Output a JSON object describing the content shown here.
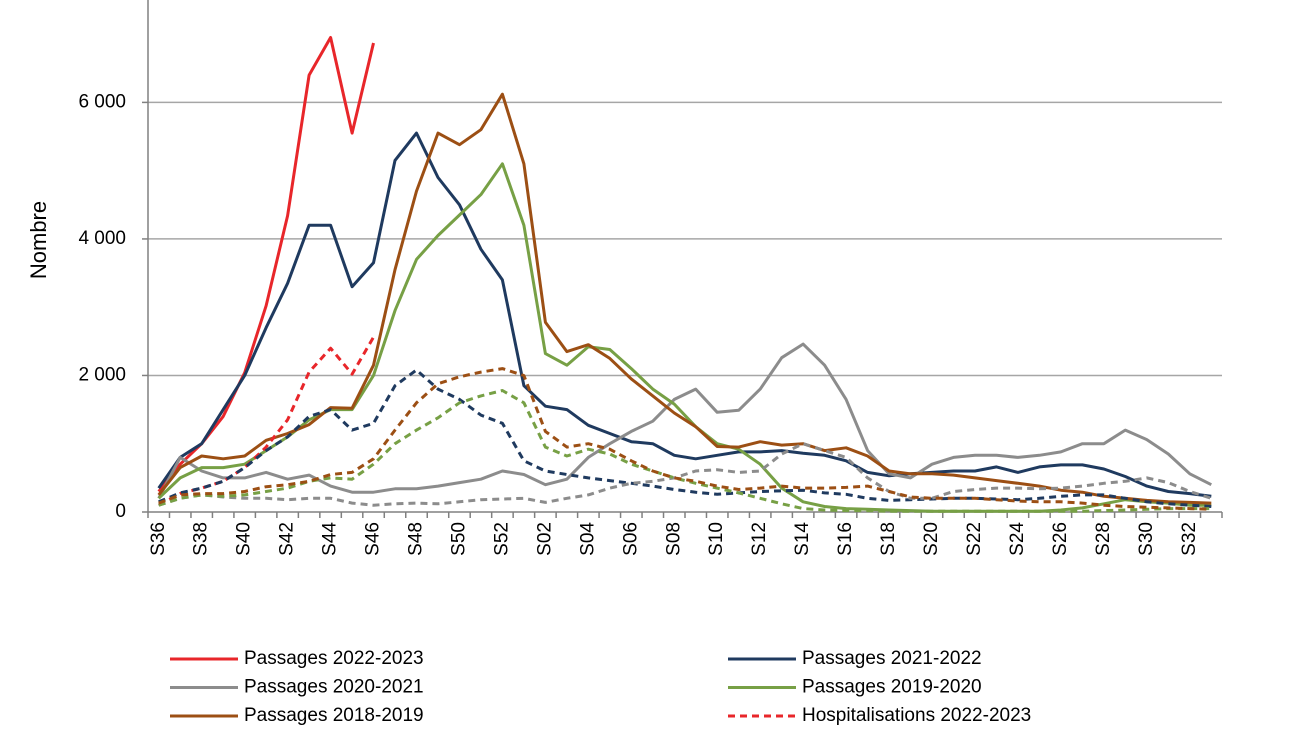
{
  "chart_data": {
    "type": "line",
    "y_label": "Nombre",
    "categories": [
      "S36",
      null,
      "S38",
      null,
      "S40",
      null,
      "S42",
      null,
      "S44",
      null,
      "S46",
      null,
      "S48",
      null,
      "S50",
      null,
      "S52",
      null,
      "S02",
      null,
      "S04",
      null,
      "S06",
      null,
      "S08",
      null,
      "S10",
      null,
      "S12",
      null,
      "S14",
      null,
      "S16",
      null,
      "S18",
      null,
      "S20",
      null,
      "S22",
      null,
      "S24",
      null,
      "S26",
      null,
      "S28",
      null,
      "S30",
      null,
      "S32",
      null
    ],
    "ylim": [
      0,
      7500
    ],
    "yticks": [
      0,
      {
        "value": 2000,
        "label": "2 000"
      },
      {
        "value": 4000,
        "label": "4 000"
      },
      {
        "value": 6000,
        "label": "6 000"
      }
    ],
    "grid": true,
    "series": [
      {
        "name": "Passages 2022-2023",
        "color": "#e8262a",
        "dash": false,
        "values": [
          300,
          700,
          1000,
          1400,
          2040,
          3020,
          4340,
          6400,
          6950,
          5550,
          6870,
          null,
          null,
          null,
          null,
          null,
          null,
          null,
          null,
          null,
          null,
          null,
          null,
          null,
          null,
          null,
          null,
          null,
          null,
          null,
          null,
          null,
          null,
          null,
          null,
          null,
          null,
          null,
          null,
          null,
          null,
          null,
          null,
          null,
          null,
          null,
          null,
          null,
          null,
          null
        ]
      },
      {
        "name": "Passages 2021-2022",
        "color": "#1f3a5f",
        "dash": false,
        "values": [
          350,
          800,
          1000,
          1500,
          2000,
          2700,
          3350,
          4200,
          4200,
          3300,
          3650,
          5150,
          5550,
          4900,
          4500,
          3850,
          3400,
          1850,
          1550,
          1500,
          1270,
          1150,
          1030,
          1000,
          830,
          780,
          830,
          880,
          880,
          900,
          860,
          830,
          750,
          580,
          530,
          560,
          580,
          600,
          600,
          660,
          580,
          660,
          690,
          690,
          630,
          520,
          380,
          300,
          270,
          230
        ]
      },
      {
        "name": "Passages 2020-2021",
        "color": "#8c8c8c",
        "dash": false,
        "values": [
          200,
          800,
          600,
          500,
          500,
          580,
          480,
          540,
          380,
          290,
          290,
          340,
          340,
          380,
          430,
          480,
          600,
          550,
          400,
          480,
          800,
          1000,
          1180,
          1330,
          1650,
          1800,
          1460,
          1490,
          1800,
          2260,
          2460,
          2150,
          1650,
          900,
          560,
          500,
          700,
          800,
          830,
          830,
          800,
          830,
          880,
          1000,
          1000,
          1200,
          1060,
          850,
          560,
          400
        ]
      },
      {
        "name": "Passages 2019-2020",
        "color": "#77a045",
        "dash": false,
        "values": [
          200,
          500,
          650,
          650,
          700,
          900,
          1100,
          1350,
          1500,
          1500,
          2000,
          2950,
          3700,
          4050,
          4350,
          4650,
          5100,
          4200,
          2320,
          2150,
          2420,
          2380,
          2100,
          1800,
          1580,
          1250,
          1000,
          920,
          700,
          350,
          150,
          80,
          50,
          40,
          30,
          20,
          10,
          10,
          10,
          10,
          10,
          10,
          30,
          60,
          120,
          180,
          150,
          130,
          100,
          100
        ]
      },
      {
        "name": "Passages 2018-2019",
        "color": "#9c4f14",
        "dash": false,
        "values": [
          250,
          650,
          820,
          780,
          820,
          1050,
          1150,
          1280,
          1530,
          1520,
          2150,
          3550,
          4700,
          5550,
          5380,
          5600,
          6120,
          5100,
          2780,
          2350,
          2450,
          2250,
          1950,
          1700,
          1450,
          1250,
          960,
          950,
          1030,
          980,
          1000,
          900,
          940,
          820,
          600,
          560,
          560,
          540,
          500,
          460,
          420,
          380,
          320,
          290,
          230,
          200,
          170,
          150,
          140,
          130
        ]
      },
      {
        "name": "Hospitalisations 2022-2023",
        "color": "#e8262a",
        "dash": true,
        "values": [
          100,
          270,
          350,
          450,
          650,
          950,
          1350,
          2050,
          2400,
          2020,
          2560,
          null,
          null,
          null,
          null,
          null,
          null,
          null,
          null,
          null,
          null,
          null,
          null,
          null,
          null,
          null,
          null,
          null,
          null,
          null,
          null,
          null,
          null,
          null,
          null,
          null,
          null,
          null,
          null,
          null,
          null,
          null,
          null,
          null,
          null,
          null,
          null,
          null,
          null,
          null
        ]
      },
      {
        "color": "#1f3a5f",
        "dash": true,
        "values": [
          150,
          280,
          350,
          450,
          650,
          900,
          1100,
          1400,
          1500,
          1200,
          1300,
          1850,
          2080,
          1800,
          1650,
          1420,
          1300,
          750,
          600,
          550,
          500,
          460,
          420,
          380,
          330,
          290,
          260,
          280,
          300,
          310,
          320,
          280,
          260,
          200,
          170,
          180,
          190,
          200,
          200,
          190,
          180,
          200,
          230,
          250,
          250,
          200,
          150,
          120,
          100,
          80
        ]
      },
      {
        "color": "#8c8c8c",
        "dash": true,
        "values": [
          100,
          200,
          250,
          220,
          200,
          200,
          180,
          200,
          200,
          130,
          100,
          120,
          130,
          120,
          150,
          180,
          190,
          200,
          140,
          200,
          250,
          350,
          420,
          450,
          500,
          600,
          620,
          580,
          600,
          850,
          1000,
          900,
          800,
          500,
          300,
          200,
          200,
          300,
          330,
          350,
          350,
          340,
          350,
          380,
          420,
          450,
          500,
          430,
          300,
          200
        ]
      },
      {
        "color": "#77a045",
        "dash": true,
        "values": [
          100,
          200,
          250,
          230,
          250,
          300,
          350,
          450,
          500,
          480,
          700,
          1000,
          1200,
          1380,
          1600,
          1700,
          1780,
          1600,
          950,
          820,
          920,
          850,
          700,
          600,
          500,
          420,
          350,
          280,
          200,
          120,
          50,
          30,
          20,
          20,
          10,
          10,
          10,
          10,
          10,
          10,
          10,
          10,
          10,
          10,
          20,
          30,
          40,
          50,
          50,
          50
        ]
      },
      {
        "color": "#9c4f14",
        "dash": true,
        "values": [
          130,
          250,
          270,
          270,
          300,
          370,
          400,
          450,
          550,
          580,
          780,
          1200,
          1600,
          1880,
          1980,
          2050,
          2100,
          2000,
          1180,
          950,
          1000,
          920,
          750,
          600,
          500,
          450,
          380,
          330,
          350,
          380,
          350,
          350,
          360,
          380,
          300,
          220,
          200,
          200,
          200,
          180,
          160,
          150,
          150,
          130,
          100,
          80,
          70,
          60,
          50,
          40
        ]
      }
    ]
  }
}
